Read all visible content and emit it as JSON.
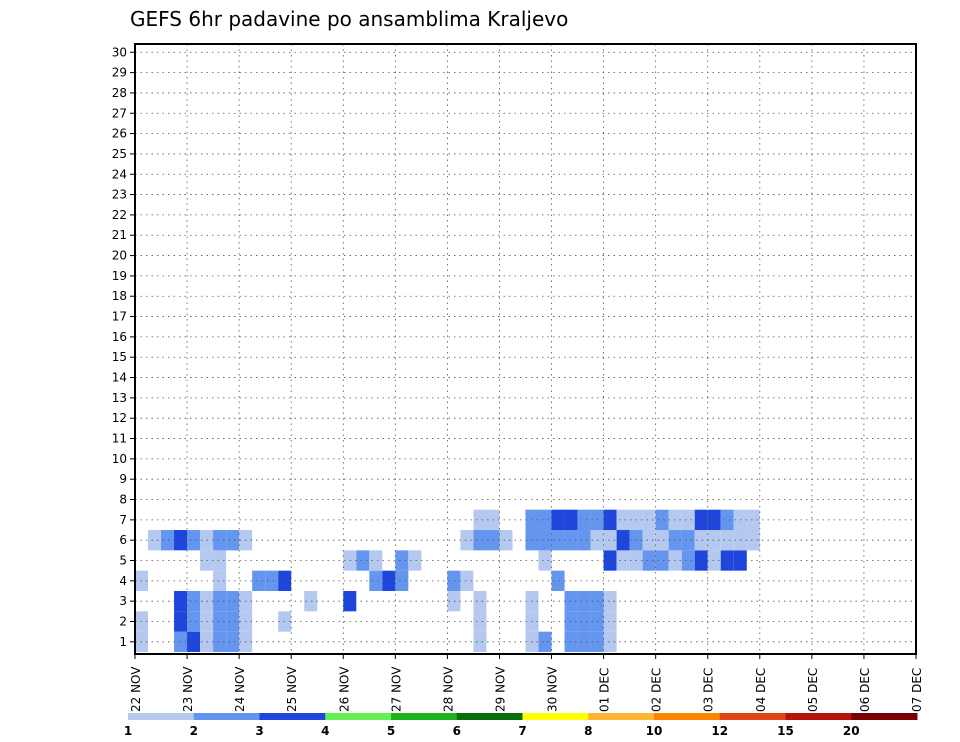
{
  "chart_data": {
    "type": "heatmap",
    "title": "GEFS 6hr padavine po ansamblima Kraljevo",
    "xlabel": "",
    "ylabel": "",
    "y_ticks": [
      "1",
      "2",
      "3",
      "4",
      "5",
      "6",
      "7",
      "8",
      "9",
      "10",
      "11",
      "12",
      "13",
      "14",
      "15",
      "16",
      "17",
      "18",
      "19",
      "20",
      "21",
      "22",
      "23",
      "24",
      "25",
      "26",
      "27",
      "28",
      "29",
      "30"
    ],
    "x_ticks": [
      "22 NOV",
      "23 NOV",
      "24 NOV",
      "25 NOV",
      "26 NOV",
      "27 NOV",
      "28 NOV",
      "29 NOV",
      "30 NOV",
      "01 DEC",
      "02 DEC",
      "03 DEC",
      "04 DEC",
      "05 DEC",
      "06 DEC",
      "07 DEC"
    ],
    "x_unit": "6-hour step from 22 NOV 00Z",
    "grid": true,
    "legend": {
      "placement": "bottom",
      "labels": [
        "1",
        "2",
        "3",
        "4",
        "5",
        "6",
        "7",
        "8",
        "10",
        "12",
        "15",
        "20"
      ],
      "colors": [
        "#b4c8f0",
        "#6496f0",
        "#1e46dc",
        "#64f050",
        "#1eb41e",
        "#0a6e0a",
        "#ffff00",
        "#ffb432",
        "#ff8200",
        "#e14614",
        "#b4140a",
        "#780000"
      ]
    },
    "cells": [
      [
        1,
        0,
        1
      ],
      [
        1,
        3,
        2
      ],
      [
        1,
        4,
        3
      ],
      [
        1,
        5,
        1
      ],
      [
        1,
        31,
        2
      ],
      [
        2,
        0,
        1
      ],
      [
        2,
        3,
        3
      ],
      [
        2,
        4,
        2
      ],
      [
        2,
        5,
        1
      ],
      [
        2,
        11,
        1
      ],
      [
        3,
        3,
        3
      ],
      [
        3,
        4,
        2
      ],
      [
        3,
        5,
        1
      ],
      [
        3,
        13,
        1
      ],
      [
        3,
        16,
        3
      ],
      [
        3,
        24,
        1
      ],
      [
        4,
        0,
        1
      ],
      [
        4,
        6,
        1
      ],
      [
        4,
        9,
        2
      ],
      [
        4,
        10,
        2
      ],
      [
        4,
        11,
        3
      ],
      [
        4,
        18,
        2
      ],
      [
        4,
        19,
        3
      ],
      [
        4,
        20,
        2
      ],
      [
        4,
        24,
        2
      ],
      [
        4,
        25,
        1
      ],
      [
        4,
        32,
        2
      ],
      [
        5,
        5,
        1
      ],
      [
        5,
        6,
        1
      ],
      [
        5,
        16,
        1
      ],
      [
        5,
        17,
        2
      ],
      [
        5,
        18,
        1
      ],
      [
        5,
        20,
        2
      ],
      [
        5,
        21,
        1
      ],
      [
        5,
        31,
        1
      ],
      [
        5,
        36,
        3
      ],
      [
        5,
        37,
        1
      ],
      [
        5,
        38,
        1
      ],
      [
        5,
        39,
        2
      ],
      [
        5,
        40,
        2
      ],
      [
        5,
        41,
        1
      ],
      [
        5,
        42,
        2
      ],
      [
        5,
        43,
        3
      ],
      [
        5,
        44,
        1
      ],
      [
        5,
        45,
        3
      ],
      [
        5,
        46,
        3
      ],
      [
        1,
        6,
        2
      ],
      [
        1,
        7,
        2
      ],
      [
        1,
        8,
        1
      ],
      [
        1,
        26,
        1
      ],
      [
        1,
        30,
        1
      ],
      [
        1,
        33,
        2
      ],
      [
        1,
        34,
        2
      ],
      [
        1,
        35,
        2
      ],
      [
        1,
        36,
        1
      ],
      [
        2,
        6,
        2
      ],
      [
        2,
        7,
        2
      ],
      [
        2,
        8,
        1
      ],
      [
        2,
        26,
        1
      ],
      [
        2,
        30,
        1
      ],
      [
        2,
        33,
        2
      ],
      [
        2,
        34,
        2
      ],
      [
        2,
        35,
        2
      ],
      [
        2,
        36,
        1
      ],
      [
        3,
        6,
        2
      ],
      [
        3,
        7,
        2
      ],
      [
        3,
        8,
        1
      ],
      [
        3,
        26,
        1
      ],
      [
        3,
        30,
        1
      ],
      [
        3,
        33,
        2
      ],
      [
        3,
        34,
        2
      ],
      [
        3,
        35,
        2
      ],
      [
        3,
        36,
        1
      ],
      [
        6,
        1,
        1
      ],
      [
        6,
        2,
        2
      ],
      [
        6,
        3,
        3
      ],
      [
        6,
        4,
        2
      ],
      [
        6,
        5,
        1
      ],
      [
        6,
        6,
        2
      ],
      [
        6,
        7,
        2
      ],
      [
        6,
        8,
        1
      ],
      [
        6,
        25,
        1
      ],
      [
        6,
        26,
        2
      ],
      [
        6,
        27,
        2
      ],
      [
        6,
        28,
        1
      ],
      [
        6,
        30,
        2
      ],
      [
        6,
        31,
        2
      ],
      [
        6,
        32,
        2
      ],
      [
        6,
        33,
        2
      ],
      [
        6,
        34,
        2
      ],
      [
        6,
        35,
        1
      ],
      [
        6,
        36,
        1
      ],
      [
        6,
        37,
        3
      ],
      [
        6,
        38,
        2
      ],
      [
        6,
        39,
        1
      ],
      [
        6,
        40,
        1
      ],
      [
        6,
        41,
        2
      ],
      [
        6,
        42,
        2
      ],
      [
        6,
        43,
        1
      ],
      [
        6,
        44,
        1
      ],
      [
        6,
        45,
        1
      ],
      [
        6,
        46,
        1
      ],
      [
        6,
        47,
        1
      ],
      [
        7,
        26,
        1
      ],
      [
        7,
        27,
        1
      ],
      [
        7,
        30,
        2
      ],
      [
        7,
        31,
        2
      ],
      [
        7,
        32,
        3
      ],
      [
        7,
        33,
        3
      ],
      [
        7,
        34,
        2
      ],
      [
        7,
        35,
        2
      ],
      [
        7,
        36,
        3
      ],
      [
        7,
        37,
        1
      ],
      [
        7,
        38,
        1
      ],
      [
        7,
        39,
        1
      ],
      [
        7,
        40,
        2
      ],
      [
        7,
        41,
        1
      ],
      [
        7,
        42,
        1
      ],
      [
        7,
        43,
        3
      ],
      [
        7,
        44,
        3
      ],
      [
        7,
        45,
        2
      ],
      [
        7,
        46,
        1
      ],
      [
        7,
        47,
        1
      ]
    ]
  },
  "colorbar": {
    "label_positions": [
      "1",
      "2",
      "3",
      "4",
      "5",
      "6",
      "7",
      "8",
      "10",
      "12",
      "15",
      "20"
    ]
  }
}
